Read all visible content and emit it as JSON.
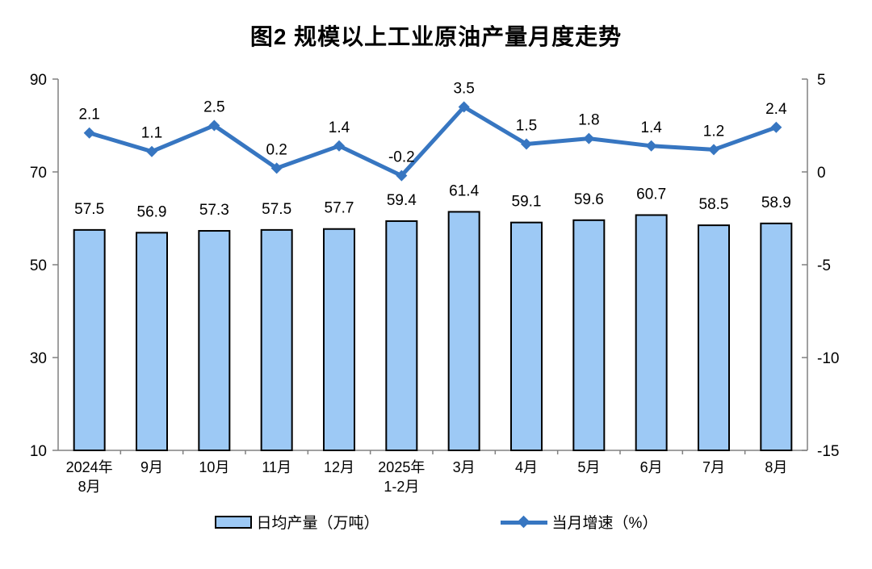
{
  "title": "图2  规模以上工业原油产量月度走势",
  "legend": {
    "bar_label": "日均产量（万吨）",
    "line_label": "当月增速（%）"
  },
  "chart_data": {
    "type": "bar",
    "subtype": "bar-line-combo",
    "title": "图2  规模以上工业原油产量月度走势",
    "categories": [
      "2024年\n8月",
      "9月",
      "10月",
      "11月",
      "12月",
      "2025年\n1-2月",
      "3月",
      "4月",
      "5月",
      "6月",
      "7月",
      "8月"
    ],
    "series": [
      {
        "name": "日均产量（万吨）",
        "type": "bar",
        "axis": "left",
        "values": [
          57.5,
          56.9,
          57.3,
          57.5,
          57.7,
          59.4,
          61.4,
          59.1,
          59.6,
          60.7,
          58.5,
          58.9
        ],
        "fill": "#9DC9F5",
        "stroke": "#000000"
      },
      {
        "name": "当月增速（%）",
        "type": "line",
        "axis": "right",
        "values": [
          2.1,
          1.1,
          2.5,
          0.2,
          1.4,
          -0.2,
          3.5,
          1.5,
          1.8,
          1.4,
          1.2,
          2.4
        ],
        "color": "#3776C1",
        "marker": "diamond"
      }
    ],
    "left_axis": {
      "min": 10,
      "max": 90,
      "ticks": [
        10,
        30,
        50,
        70,
        90
      ]
    },
    "right_axis": {
      "min": -15,
      "max": 5,
      "ticks": [
        -15,
        -10,
        -5,
        0,
        5
      ]
    },
    "grid": false,
    "legend_position": "bottom",
    "axis_color": "#808080",
    "label_color": "#000000"
  }
}
